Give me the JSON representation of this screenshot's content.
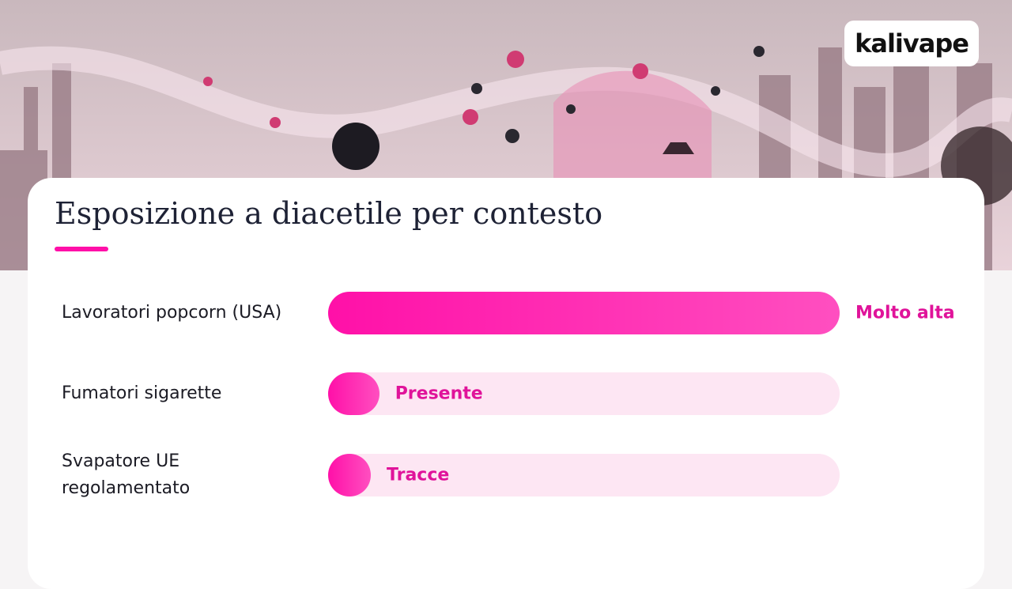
{
  "brand": "kalivape",
  "chart_data": {
    "type": "bar",
    "orientation": "horizontal",
    "title": "Esposizione a diacetile per contesto",
    "categories": [
      "Lavoratori popcorn (USA)",
      "Fumatori sigarette",
      "Svapatore UE regolamentato"
    ],
    "values": [
      100,
      10,
      8
    ],
    "value_labels": [
      "Molto alta",
      "Presente",
      "Tracce"
    ],
    "xlim": [
      0,
      100
    ],
    "color": "#ff10a8",
    "track_color": "#fde6f3",
    "label_color": "#e0139a"
  }
}
